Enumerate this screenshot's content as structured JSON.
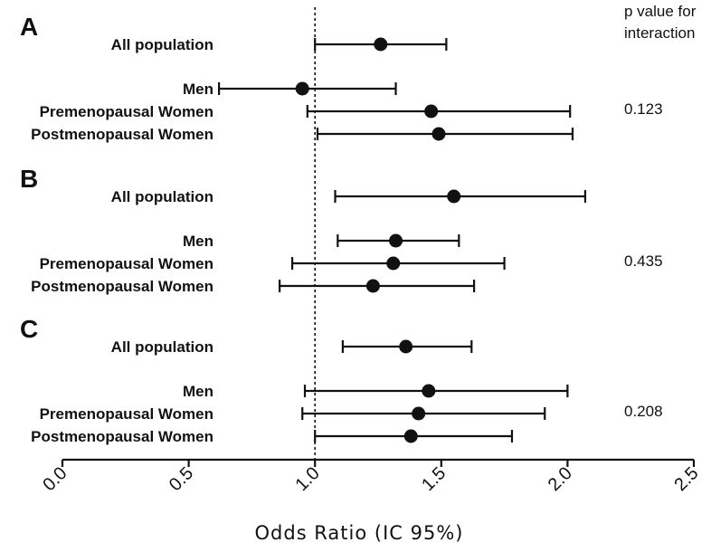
{
  "chart_data": {
    "type": "forest",
    "xlabel": "Odds Ratio  (IC 95%)",
    "xlim": [
      0.0,
      2.5
    ],
    "xticks": [
      "0.0",
      "0.5",
      "1.0",
      "1.5",
      "2.0",
      "2.5"
    ],
    "reference_line": 1.0,
    "pvalue_header": [
      "p value for",
      "interaction"
    ],
    "panels": [
      {
        "letter": "A",
        "p_value": "0.123",
        "rows": [
          {
            "label": "All population",
            "or": 1.26,
            "lo": 1.0,
            "hi": 1.52
          },
          {
            "label": "Men",
            "or": 0.95,
            "lo": 0.62,
            "hi": 1.32
          },
          {
            "label": "Premenopausal Women",
            "or": 1.46,
            "lo": 0.97,
            "hi": 2.01
          },
          {
            "label": "Postmenopausal Women",
            "or": 1.49,
            "lo": 1.01,
            "hi": 2.02
          }
        ]
      },
      {
        "letter": "B",
        "p_value": "0.435",
        "rows": [
          {
            "label": "All population",
            "or": 1.55,
            "lo": 1.08,
            "hi": 2.07
          },
          {
            "label": "Men",
            "or": 1.32,
            "lo": 1.09,
            "hi": 1.57
          },
          {
            "label": "Premenopausal Women",
            "or": 1.31,
            "lo": 0.91,
            "hi": 1.75
          },
          {
            "label": "Postmenopausal Women",
            "or": 1.23,
            "lo": 0.86,
            "hi": 1.63
          }
        ]
      },
      {
        "letter": "C",
        "p_value": "0.208",
        "rows": [
          {
            "label": "All population",
            "or": 1.36,
            "lo": 1.11,
            "hi": 1.62
          },
          {
            "label": "Men",
            "or": 1.45,
            "lo": 0.96,
            "hi": 2.0
          },
          {
            "label": "Premenopausal Women",
            "or": 1.41,
            "lo": 0.95,
            "hi": 1.91
          },
          {
            "label": "Postmenopausal Women",
            "or": 1.38,
            "lo": 1.0,
            "hi": 1.78
          }
        ]
      }
    ]
  }
}
